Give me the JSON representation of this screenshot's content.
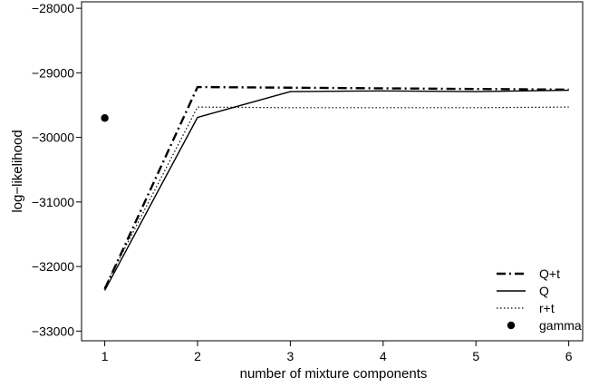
{
  "chart_data": {
    "type": "line",
    "title": "",
    "xlabel": "number of mixture components",
    "ylabel": "log−likelihood",
    "xlim": [
      0.75,
      6.15
    ],
    "ylim": [
      -33150,
      -27900
    ],
    "x_ticks": [
      1,
      2,
      3,
      4,
      5,
      6
    ],
    "x_tick_labels": [
      "1",
      "2",
      "3",
      "4",
      "5",
      "6"
    ],
    "y_ticks": [
      -33000,
      -32000,
      -31000,
      -30000,
      -29000,
      -28000
    ],
    "y_tick_labels": [
      "−33000",
      "−32000",
      "−31000",
      "−30000",
      "−29000",
      "−28000"
    ],
    "grid": false,
    "legend_position": "bottom-right",
    "series": [
      {
        "name": "Q+t",
        "style": "dashdot",
        "x": [
          1,
          2,
          3,
          4,
          5,
          6
        ],
        "y": [
          -32350,
          -29220,
          -29230,
          -29240,
          -29250,
          -29260
        ]
      },
      {
        "name": "Q",
        "style": "solid",
        "x": [
          1,
          2,
          3,
          4,
          5,
          6
        ],
        "y": [
          -32370,
          -29690,
          -29290,
          -29280,
          -29290,
          -29270
        ]
      },
      {
        "name": "r+t",
        "style": "dotted",
        "x": [
          1,
          2,
          3,
          4,
          5,
          6
        ],
        "y": [
          -32320,
          -29530,
          -29540,
          -29540,
          -29540,
          -29530
        ]
      },
      {
        "name": "gamma",
        "style": "point",
        "x": [
          1
        ],
        "y": [
          -29700
        ]
      }
    ]
  }
}
